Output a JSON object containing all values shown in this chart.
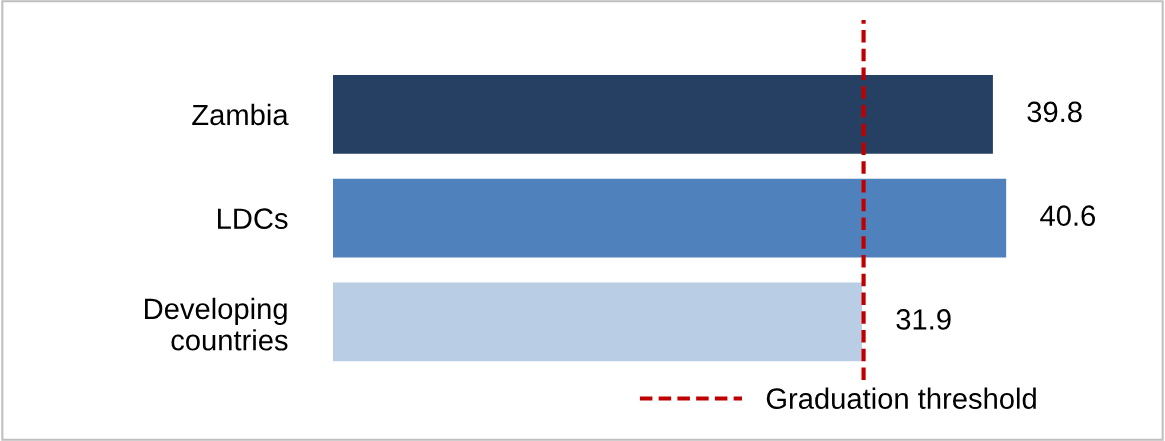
{
  "chart_data": {
    "type": "bar",
    "orientation": "horizontal",
    "categories": [
      "Zambia",
      "LDCs",
      "Developing\ncountries"
    ],
    "values": [
      39.8,
      40.6,
      31.9
    ],
    "colors": [
      "#264064",
      "#4f81bd",
      "#b9cde5"
    ],
    "data_labels": true,
    "ref_lines": [
      {
        "axis": "x",
        "value": 32,
        "label": "Graduation threshold",
        "color": "#c00000",
        "line_style": "dashed"
      }
    ],
    "legend": "bottom",
    "grid": false
  }
}
